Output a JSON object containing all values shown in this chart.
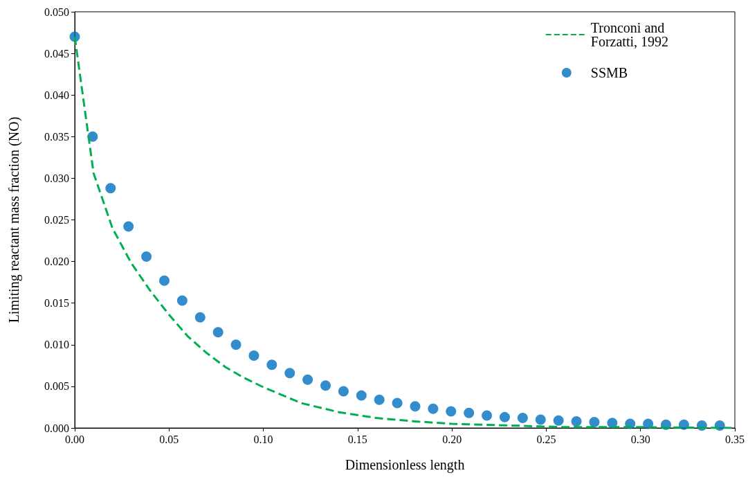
{
  "chart_data": {
    "type": "scatter",
    "xlabel": "Dimensionless length",
    "ylabel": "Limiting reactant mass fraction (NO)",
    "xlim": [
      0,
      0.35
    ],
    "ylim": [
      0,
      0.05
    ],
    "xticks": [
      {
        "value": 0,
        "label": "0.00"
      },
      {
        "value": 0.05,
        "label": "0.05"
      },
      {
        "value": 0.1,
        "label": "0.10"
      },
      {
        "value": 0.15,
        "label": "0.15"
      },
      {
        "value": 0.2,
        "label": "0.20"
      },
      {
        "value": 0.25,
        "label": "0.25"
      },
      {
        "value": 0.3,
        "label": "0.30"
      },
      {
        "value": 0.35,
        "label": "0.35"
      }
    ],
    "yticks": [
      {
        "value": 0,
        "label": "0.000"
      },
      {
        "value": 0.005,
        "label": "0.005"
      },
      {
        "value": 0.01,
        "label": "0.010"
      },
      {
        "value": 0.015,
        "label": "0.015"
      },
      {
        "value": 0.02,
        "label": "0.020"
      },
      {
        "value": 0.025,
        "label": "0.025"
      },
      {
        "value": 0.03,
        "label": "0.030"
      },
      {
        "value": 0.035,
        "label": "0.035"
      },
      {
        "value": 0.04,
        "label": "0.040"
      },
      {
        "value": 0.045,
        "label": "0.045"
      },
      {
        "value": 0.05,
        "label": "0.050"
      }
    ],
    "grid": false,
    "legend": "top right",
    "series": [
      {
        "name": "Tronconi and Forzatti, 1992",
        "type": "line",
        "line_style": "dashed",
        "marker": "none",
        "color": "#00b050",
        "x": [
          0,
          0.01,
          0.02,
          0.03,
          0.04,
          0.05,
          0.06,
          0.07,
          0.08,
          0.09,
          0.1,
          0.12,
          0.14,
          0.16,
          0.18,
          0.2,
          0.23,
          0.26,
          0.3,
          0.35
        ],
        "values": [
          0.047,
          0.0306,
          0.024,
          0.0198,
          0.0165,
          0.0136,
          0.011,
          0.009,
          0.0073,
          0.006,
          0.0049,
          0.003,
          0.0019,
          0.0012,
          0.0008,
          0.0005,
          0.0003,
          0.0001,
          0.0001,
          0
        ]
      },
      {
        "name": "SSMB",
        "marker": "circle",
        "color": "#0070c0",
        "x": [
          0,
          0.0095,
          0.019,
          0.0285,
          0.038,
          0.0475,
          0.057,
          0.0665,
          0.076,
          0.0855,
          0.095,
          0.1045,
          0.114,
          0.1235,
          0.133,
          0.1425,
          0.152,
          0.1615,
          0.171,
          0.1805,
          0.19,
          0.1995,
          0.209,
          0.2185,
          0.228,
          0.2375,
          0.247,
          0.2565,
          0.266,
          0.2755,
          0.285,
          0.2945,
          0.304,
          0.3135,
          0.323,
          0.3325,
          0.342
        ],
        "values": [
          0.047,
          0.035,
          0.0288,
          0.0242,
          0.0206,
          0.0177,
          0.0153,
          0.0133,
          0.0115,
          0.01,
          0.0087,
          0.0076,
          0.0066,
          0.0058,
          0.0051,
          0.0044,
          0.0039,
          0.0034,
          0.003,
          0.0026,
          0.0023,
          0.002,
          0.0018,
          0.0015,
          0.0013,
          0.0012,
          0.001,
          0.0009,
          0.0008,
          0.0007,
          0.0006,
          0.0005,
          0.0005,
          0.0004,
          0.0004,
          0.0003,
          0.0003
        ]
      }
    ]
  }
}
